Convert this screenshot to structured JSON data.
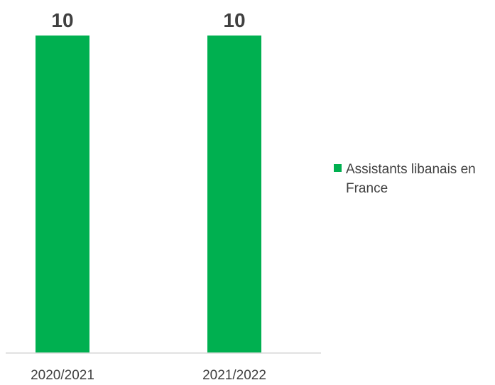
{
  "chart_data": {
    "type": "bar",
    "categories": [
      "2020/2021",
      "2021/2022"
    ],
    "series": [
      {
        "name": "Assistants libanais en France",
        "values": [
          10,
          10
        ]
      }
    ],
    "data_labels": [
      "10",
      "10"
    ],
    "title": "",
    "xlabel": "",
    "ylabel": "",
    "ylim": [
      0,
      10
    ],
    "grid": false,
    "legend_position": "right",
    "colors": {
      "bar": "#00b050",
      "axis": "#d9d9d9",
      "tick_text": "#404040",
      "data_label_text": "#404040"
    }
  }
}
